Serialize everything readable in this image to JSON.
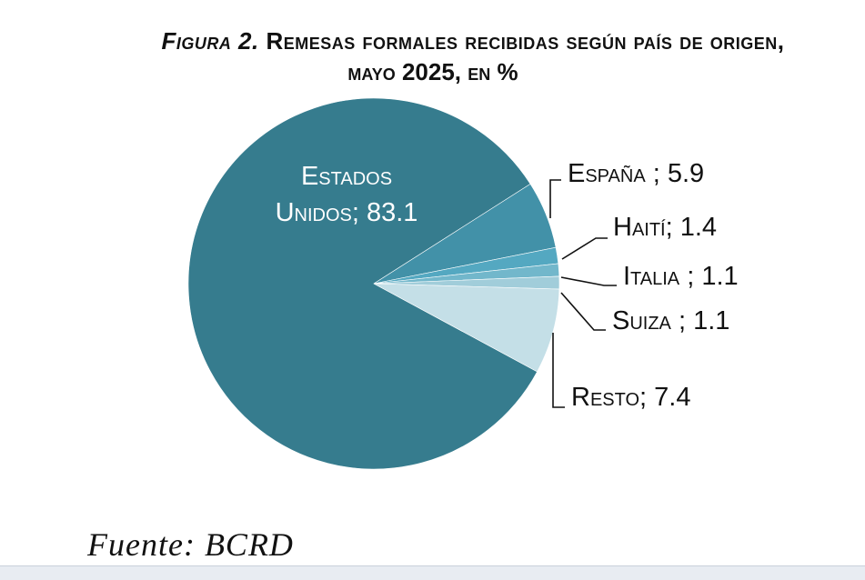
{
  "title": {
    "figure_label": "Figura 2.",
    "line1_rest": " Remesas formales recibidas según país de origen,",
    "line2": "mayo 2025, en %"
  },
  "source": "Fuente: BCRD",
  "colors": {
    "estados_unidos": "#367c8e",
    "espana": "#4291a8",
    "haiti": "#54a8c1",
    "italia": "#72b7cb",
    "suiza": "#a1cdda",
    "resto": "#c4dfe7"
  },
  "chart_data": {
    "type": "pie",
    "title": "Figura 2. Remesas formales recibidas según país de origen, mayo 2025, en %",
    "slices": [
      {
        "label": "Estados Unidos",
        "value": 83.1,
        "display": "Estados Unidos; 83.1",
        "line1": "Estados",
        "line2": "Unidos; 83.1"
      },
      {
        "label": "España",
        "value": 5.9,
        "display": "España ; 5.9"
      },
      {
        "label": "Haití",
        "value": 1.4,
        "display": "Haití; 1.4"
      },
      {
        "label": "Italia",
        "value": 1.1,
        "display": "Italia ; 1.1"
      },
      {
        "label": "Suiza",
        "value": 1.1,
        "display": "Suiza ; 1.1"
      },
      {
        "label": "Resto",
        "value": 7.4,
        "display": "Resto; 7.4"
      }
    ]
  }
}
